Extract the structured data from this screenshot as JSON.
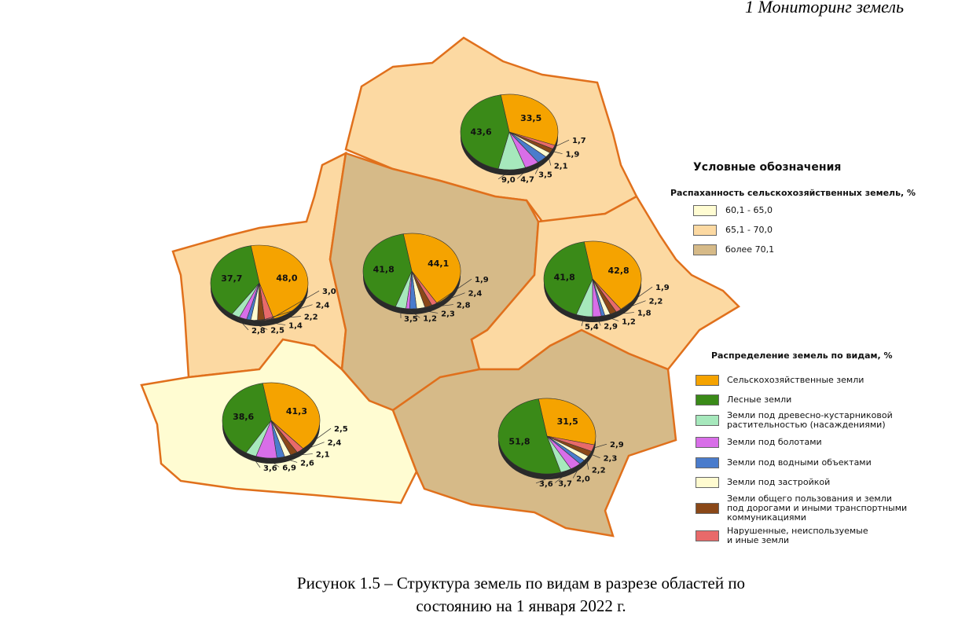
{
  "header": "1 Мониторинг земель",
  "legend": {
    "title": "Условные обозначения",
    "tillage_title": "Распаханность сельскохозяйственных земель, %",
    "tillage_classes": [
      {
        "label": "60,1 - 65,0",
        "color": "#fffcd2"
      },
      {
        "label": "65,1 - 70,0",
        "color": "#fcd9a2"
      },
      {
        "label": "более 70,1",
        "color": "#d6ba88"
      }
    ],
    "land_title": "Распределение земель по видам, %",
    "land_types": [
      {
        "label": "Сельскохозяйственные земли",
        "color": "#f5a300"
      },
      {
        "label": "Лесные земли",
        "color": "#3a8a18"
      },
      {
        "label": "Земли под древесно-кустарниковой\nрастительностью (насаждениями)",
        "color": "#a6e8bc"
      },
      {
        "label": "Земли под болотами",
        "color": "#d86ee8"
      },
      {
        "label": "Земли под водными объектами",
        "color": "#4a7ccc"
      },
      {
        "label": "Земли под застройкой",
        "color": "#fffbd0"
      },
      {
        "label": "Земли общего пользования и земли\nпод дорогами и иными транспортными\nкоммуникациями",
        "color": "#8a4818"
      },
      {
        "label": "Нарушенные, неиспользуемые\nи иные земли",
        "color": "#e86a6a"
      }
    ]
  },
  "regions": [
    {
      "color": "#fcd9a2",
      "pie": {
        "values": [
          33.5,
          43.6,
          9.0,
          4.7,
          3.5,
          2.1,
          1.9,
          1.7
        ],
        "value_labels": [
          "33,5",
          "43,6",
          "9,0",
          "4,7",
          "3,5",
          "2,1",
          "1,9",
          "1,7"
        ]
      }
    },
    {
      "color": "#fcd9a2",
      "pie": {
        "values": [
          48.0,
          37.7,
          2.8,
          2.5,
          1.4,
          2.2,
          2.4,
          3.0
        ],
        "value_labels": [
          "48,0",
          "37,7",
          "2,8",
          "2,5",
          "1,4",
          "2,2",
          "2,4",
          "3,0"
        ]
      }
    },
    {
      "color": "#d6ba88",
      "pie": {
        "values": [
          44.1,
          41.8,
          3.5,
          1.2,
          2.3,
          2.8,
          2.4,
          1.9
        ],
        "value_labels": [
          "44,1",
          "41,8",
          "3,5",
          "1,2",
          "2,3",
          "2,8",
          "2,4",
          "1,9"
        ]
      }
    },
    {
      "color": "#fcd9a2",
      "pie": {
        "values": [
          42.8,
          41.8,
          5.4,
          2.9,
          1.2,
          1.8,
          2.2,
          1.9
        ],
        "value_labels": [
          "42,8",
          "41,8",
          "5,4",
          "2,9",
          "1,2",
          "1,8",
          "2,2",
          "1,9"
        ]
      }
    },
    {
      "color": "#fffcd2",
      "pie": {
        "values": [
          41.3,
          38.6,
          3.6,
          6.9,
          2.6,
          2.1,
          2.4,
          2.5
        ],
        "value_labels": [
          "41,3",
          "38,6",
          "3,6",
          "6,9",
          "2,6",
          "2,1",
          "2,4",
          "2,5"
        ]
      }
    },
    {
      "color": "#d6ba88",
      "pie": {
        "values": [
          31.5,
          51.8,
          3.6,
          3.7,
          2.0,
          2.2,
          2.3,
          2.9
        ],
        "value_labels": [
          "31,5",
          "51,8",
          "3,6",
          "3,7",
          "2,0",
          "2,2",
          "2,3",
          "2,9"
        ]
      }
    }
  ],
  "caption": "Рисунок 1.5 – Структура земель по видам в разрезе областей по\nсостоянию на 1 января 2022 г."
}
